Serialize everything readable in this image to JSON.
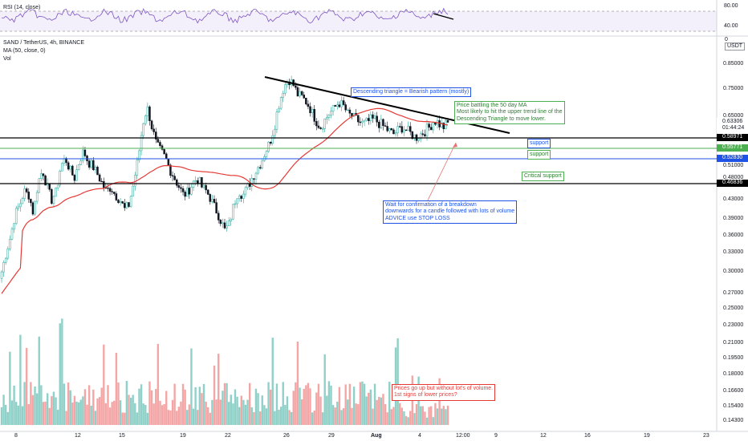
{
  "header": {
    "rsi_title": "RSI (14, close)",
    "symbol_title": "SAND / TetherUS, 4h, BINANCE",
    "ma_label": "MA (50, close, 0)",
    "vol_label": "Vol",
    "currency": "USDT"
  },
  "rsi_axis": {
    "upper": "80.00",
    "lower": "40.00"
  },
  "price_axis": {
    "ticks": [
      "0.85000",
      "0.75000",
      "0.65000",
      "0.51000",
      "0.48000",
      "0.43000",
      "0.39000",
      "0.36000",
      "0.33000",
      "0.30000",
      "0.27000",
      "0.25000",
      "0.23000",
      "0.21000",
      "0.19500",
      "0.18000",
      "0.16600",
      "0.15400",
      "0.14300"
    ],
    "top_label": "0"
  },
  "price_tags": {
    "current": "0.63306",
    "countdown": "01:44:24",
    "support1": "0.58971",
    "support2": "0.55771",
    "support3": "0.52830",
    "critical": "0.46836"
  },
  "time_axis": {
    "labels": [
      "8",
      "12",
      "15",
      "19",
      "22",
      "26",
      "29",
      "Aug",
      "4",
      "12:00",
      "9",
      "12",
      "16",
      "19",
      "23"
    ]
  },
  "annotations": {
    "triangle": "Descending triangle = Bearish pattern (mostly)",
    "ma_note": [
      "Price battling the 50 day MA",
      "Most likely to hit the upper trend line of the",
      "Descending Triangle to move lower."
    ],
    "support_a": "support",
    "support_b": "support",
    "critical": "Critical support",
    "breakdown": [
      "Wait for confirmation of a breakdown",
      "downwards for a candle followed with lots of volume",
      "ADVICE use STOP LOSS"
    ],
    "volume_note": [
      "Prices go up but without lot's of volume.",
      "1st signs of lower prices?"
    ]
  },
  "colors": {
    "up": "#26a69a",
    "down": "#131722",
    "ma": "#e53935",
    "support_black": "#000000",
    "support_green": "#4caf50",
    "support_blue": "#1e53e5",
    "vol_up": "#8fd1c8",
    "vol_down": "#f4a6a6",
    "rsi_line": "#7e57c2"
  },
  "chart_data": {
    "type": "candlestick",
    "title": "SAND / TetherUS, 4h, BINANCE",
    "indicators": [
      "RSI (14, close)",
      "MA (50, close, 0)",
      "Vol"
    ],
    "current_price": 0.63306,
    "horizontal_levels": [
      {
        "price": 0.58971,
        "label": "support",
        "color": "#000000"
      },
      {
        "price": 0.55771,
        "label": "support",
        "color": "#4caf50"
      },
      {
        "price": 0.5283,
        "label": "",
        "color": "#1e53e5"
      },
      {
        "price": 0.46836,
        "label": "Critical support",
        "color": "#000000"
      }
    ],
    "trendline": {
      "from": 0.79,
      "to": 0.6,
      "label": "Descending triangle = Bearish pattern (mostly)"
    },
    "price_path": [
      0.3,
      0.33,
      0.36,
      0.4,
      0.42,
      0.45,
      0.44,
      0.4,
      0.47,
      0.5,
      0.46,
      0.43,
      0.45,
      0.51,
      0.53,
      0.5,
      0.48,
      0.52,
      0.55,
      0.52,
      0.51,
      0.49,
      0.47,
      0.45,
      0.46,
      0.44,
      0.43,
      0.41,
      0.42,
      0.47,
      0.53,
      0.63,
      0.68,
      0.62,
      0.57,
      0.55,
      0.53,
      0.5,
      0.48,
      0.46,
      0.44,
      0.45,
      0.47,
      0.48,
      0.46,
      0.45,
      0.43,
      0.41,
      0.39,
      0.37,
      0.38,
      0.42,
      0.45,
      0.44,
      0.46,
      0.48,
      0.5,
      0.52,
      0.55,
      0.58,
      0.63,
      0.7,
      0.76,
      0.79,
      0.77,
      0.73,
      0.72,
      0.7,
      0.67,
      0.64,
      0.62,
      0.64,
      0.66,
      0.68,
      0.7,
      0.69,
      0.66,
      0.65,
      0.64,
      0.63,
      0.63,
      0.64,
      0.64,
      0.63,
      0.62,
      0.61,
      0.6,
      0.61,
      0.62,
      0.61,
      0.6,
      0.59,
      0.6,
      0.61,
      0.62,
      0.64,
      0.63,
      0.62,
      0.63
    ]
  }
}
